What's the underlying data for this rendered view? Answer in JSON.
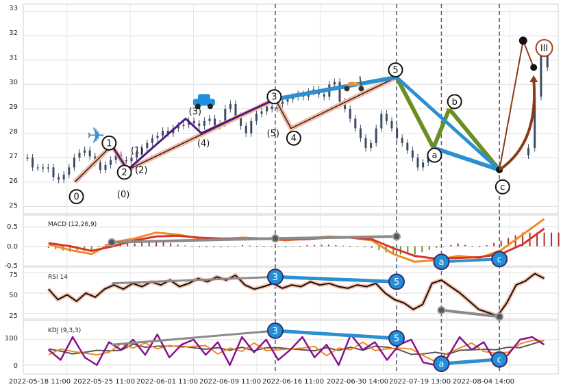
{
  "chart_data": {
    "type": "line",
    "x_tick_labels": [
      "2022-05-18 11:00",
      "2022-05-25 11:00",
      "2022-06-01 11:00",
      "2022-06-09 11:00",
      "2022-06-16 11:00",
      "2022-06-30 14:00",
      "2022-07-19 13:00",
      "2022-08-04 14:00"
    ],
    "panels": {
      "price": {
        "y_ticks": [
          "25",
          "26",
          "27",
          "28",
          "29",
          "30",
          "31",
          "32",
          "33"
        ],
        "ylim": [
          24.7,
          33.3
        ],
        "candles_close": [
          27.0,
          26.6,
          26.6,
          26.55,
          26.6,
          26.2,
          26.1,
          26.3,
          26.6,
          27.0,
          27.2,
          27.3,
          27.05,
          26.8,
          26.5,
          26.7,
          26.9,
          27.1,
          26.9,
          26.85,
          27.0,
          27.15,
          27.4,
          27.6,
          27.8,
          27.9,
          28.1,
          28.0,
          28.2,
          28.3,
          28.35,
          28.5,
          28.4,
          28.3,
          28.5,
          28.6,
          28.3,
          28.4,
          29.0,
          29.2,
          28.7,
          28.3,
          28.0,
          28.5,
          28.8,
          28.9,
          29.1,
          29.0,
          29.2,
          29.3,
          29.4,
          29.5,
          29.6,
          29.5,
          29.7,
          29.8,
          29.6,
          29.5,
          30.0,
          30.1,
          29.3,
          29.0,
          28.6,
          28.2,
          27.8,
          27.4,
          27.6,
          28.2,
          28.8,
          28.5,
          28.2,
          27.8,
          27.6,
          27.3,
          27.0,
          26.6,
          26.8,
          27.1,
          27.4,
          29.5,
          31.2,
          30.7
        ],
        "wave_labels": [
          "0",
          "1",
          "2",
          "3",
          "4",
          "5",
          "(0)",
          "(1)",
          "(2)",
          "(3)",
          "(4)",
          "(5)",
          "a",
          "b",
          "c",
          "III"
        ],
        "primary_wave": [
          [
            "0",
            26.0
          ],
          [
            "1",
            27.5
          ],
          [
            "2",
            26.5
          ],
          [
            "3",
            29.4
          ],
          [
            "4",
            28.2
          ],
          [
            "5",
            30.3
          ]
        ],
        "correction_wave": [
          [
            "5",
            30.3
          ],
          [
            "a",
            27.4
          ],
          [
            "b",
            29.0
          ],
          [
            "c",
            26.5
          ]
        ],
        "icons": [
          "airplane-icon",
          "car-icon",
          "scooter-icon"
        ]
      },
      "macd": {
        "label": "MACD (12,26,9)",
        "y_ticks": [
          "0.5",
          "0.0",
          "-0.5"
        ],
        "ylim": [
          -0.5,
          0.8
        ],
        "macd_line": [
          0.05,
          -0.1,
          -0.2,
          0.1,
          0.2,
          0.35,
          0.3,
          0.2,
          0.18,
          0.22,
          0.2,
          0.15,
          0.2,
          0.25,
          0.22,
          0.15,
          -0.2,
          -0.4,
          -0.35,
          -0.25,
          -0.3,
          -0.1,
          0.3,
          0.7
        ],
        "signal_line": [
          0.08,
          0.0,
          -0.12,
          0.0,
          0.15,
          0.25,
          0.27,
          0.22,
          0.2,
          0.2,
          0.2,
          0.17,
          0.18,
          0.22,
          0.22,
          0.18,
          -0.05,
          -0.25,
          -0.32,
          -0.3,
          -0.28,
          -0.2,
          0.05,
          0.45
        ],
        "divergence_points": [
          0.1,
          0.2,
          0.25,
          -0.4,
          -0.33
        ]
      },
      "rsi": {
        "label": "RSI 14",
        "y_ticks": [
          "25",
          "50",
          "75"
        ],
        "ylim": [
          18,
          82
        ],
        "values": [
          55,
          42,
          48,
          40,
          50,
          45,
          55,
          60,
          55,
          62,
          58,
          64,
          60,
          66,
          58,
          62,
          68,
          64,
          70,
          66,
          72,
          60,
          55,
          58,
          62,
          56,
          60,
          58,
          64,
          60,
          62,
          58,
          56,
          60,
          58,
          62,
          50,
          42,
          38,
          30,
          36,
          62,
          66,
          58,
          50,
          40,
          30,
          26,
          22,
          38,
          60,
          65,
          74,
          68
        ],
        "divergence_points": [
          62,
          70,
          64,
          29,
          21
        ]
      },
      "kdj": {
        "label": "KDJ (9,3,3)",
        "y_ticks": [
          "0",
          "100"
        ],
        "ylim": [
          -35,
          175
        ],
        "j_values": [
          60,
          20,
          110,
          30,
          0,
          90,
          60,
          100,
          40,
          120,
          30,
          80,
          100,
          40,
          90,
          0,
          110,
          50,
          100,
          20,
          60,
          110,
          30,
          80,
          0,
          120,
          60,
          90,
          20,
          80,
          100,
          10,
          0,
          30,
          110,
          60,
          90,
          10,
          40,
          100,
          110,
          80
        ],
        "divergence_points": [
          80,
          135,
          105,
          5,
          22
        ]
      }
    }
  }
}
